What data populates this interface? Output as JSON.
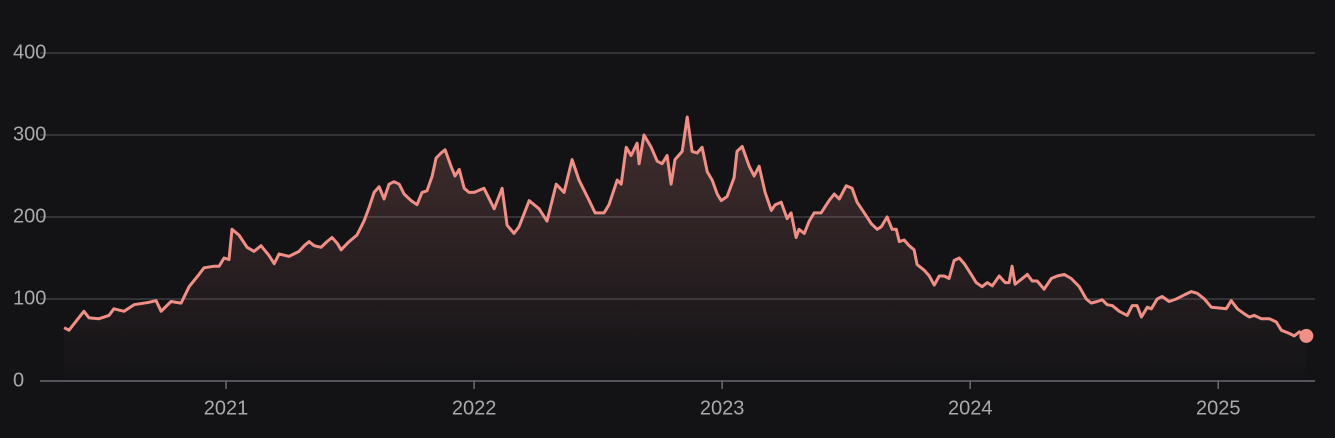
{
  "chart_data": {
    "type": "line",
    "color": "#ef8f86",
    "x": [
      2020.347,
      2020.367,
      2020.427,
      2020.448,
      2020.488,
      2020.528,
      2020.548,
      2020.589,
      2020.629,
      2020.69,
      2020.718,
      2020.738,
      2020.778,
      2020.819,
      2020.851,
      2020.891,
      2020.911,
      2020.952,
      2020.972,
      2020.992,
      2021.012,
      2021.024,
      2021.052,
      2021.085,
      2021.113,
      2021.141,
      2021.173,
      2021.194,
      2021.214,
      2021.254,
      2021.294,
      2021.315,
      2021.335,
      2021.355,
      2021.383,
      2021.407,
      2021.427,
      2021.448,
      2021.464,
      2021.496,
      2021.528,
      2021.556,
      2021.577,
      2021.597,
      2021.617,
      2021.637,
      2021.657,
      2021.677,
      2021.698,
      2021.718,
      2021.746,
      2021.77,
      2021.79,
      2021.81,
      2021.831,
      2021.847,
      2021.867,
      2021.883,
      2021.907,
      2021.923,
      2021.94,
      2021.96,
      2021.98,
      2022.0,
      2022.04,
      2022.081,
      2022.113,
      2022.133,
      2022.161,
      2022.181,
      2022.222,
      2022.262,
      2022.294,
      2022.331,
      2022.363,
      2022.395,
      2022.423,
      2022.464,
      2022.488,
      2022.524,
      2022.544,
      2022.577,
      2022.593,
      2022.613,
      2022.633,
      2022.657,
      2022.665,
      2022.685,
      2022.714,
      2022.738,
      2022.758,
      2022.778,
      2022.794,
      2022.81,
      2022.839,
      2022.859,
      2022.879,
      2022.899,
      2022.919,
      2022.94,
      2022.96,
      2022.98,
      2022.996,
      2023.02,
      2023.048,
      2023.06,
      2023.081,
      2023.109,
      2023.129,
      2023.149,
      2023.173,
      2023.198,
      2023.214,
      2023.238,
      2023.262,
      2023.278,
      2023.298,
      2023.31,
      2023.331,
      2023.351,
      2023.371,
      2023.399,
      2023.431,
      2023.452,
      2023.472,
      2023.5,
      2023.524,
      2023.544,
      2023.573,
      2023.601,
      2023.625,
      2023.641,
      2023.665,
      2023.685,
      2023.702,
      2023.714,
      2023.734,
      2023.754,
      2023.774,
      2023.786,
      2023.815,
      2023.835,
      2023.855,
      2023.875,
      2023.895,
      2023.915,
      2023.935,
      2023.956,
      2023.976,
      2024.004,
      2024.024,
      2024.048,
      2024.069,
      2024.089,
      2024.117,
      2024.141,
      2024.157,
      2024.169,
      2024.181,
      2024.206,
      2024.23,
      2024.25,
      2024.27,
      2024.298,
      2024.327,
      2024.351,
      2024.379,
      2024.407,
      2024.44,
      2024.468,
      2024.488,
      2024.512,
      2024.532,
      2024.552,
      2024.573,
      2024.601,
      2024.633,
      2024.653,
      2024.673,
      2024.69,
      2024.714,
      2024.73,
      2024.754,
      2024.774,
      2024.802,
      2024.831,
      2024.863,
      2024.891,
      2024.915,
      2024.944,
      2024.972,
      2025.004,
      2025.032,
      2025.052,
      2025.077,
      2025.105,
      2025.125,
      2025.145,
      2025.173,
      2025.206,
      2025.234,
      2025.254,
      2025.286,
      2025.306,
      2025.327,
      2025.355
    ],
    "values": [
      65,
      62,
      85,
      77,
      76,
      80,
      88,
      85,
      93,
      96,
      98,
      85,
      97,
      95,
      115,
      130,
      138,
      140,
      140,
      150,
      148,
      185,
      178,
      163,
      158,
      165,
      153,
      143,
      155,
      152,
      158,
      165,
      170,
      165,
      163,
      170,
      175,
      168,
      160,
      170,
      178,
      195,
      212,
      230,
      237,
      222,
      240,
      243,
      240,
      228,
      220,
      215,
      230,
      232,
      250,
      272,
      278,
      282,
      262,
      250,
      258,
      235,
      230,
      230,
      235,
      210,
      235,
      190,
      180,
      188,
      220,
      210,
      195,
      240,
      230,
      270,
      245,
      220,
      205,
      205,
      215,
      245,
      240,
      285,
      275,
      290,
      265,
      300,
      285,
      268,
      265,
      275,
      240,
      270,
      280,
      322,
      280,
      278,
      285,
      255,
      245,
      228,
      220,
      225,
      248,
      280,
      286,
      262,
      250,
      262,
      230,
      208,
      215,
      218,
      198,
      205,
      175,
      185,
      180,
      195,
      205,
      205,
      220,
      228,
      222,
      238,
      235,
      218,
      205,
      192,
      185,
      188,
      200,
      185,
      185,
      170,
      172,
      165,
      160,
      142,
      135,
      128,
      117,
      128,
      128,
      125,
      147,
      150,
      143,
      130,
      120,
      115,
      120,
      116,
      128,
      120,
      120,
      140,
      118,
      124,
      130,
      122,
      122,
      112,
      125,
      128,
      130,
      125,
      115,
      100,
      95,
      97,
      99,
      93,
      92,
      85,
      80,
      92,
      92,
      78,
      90,
      88,
      100,
      103,
      97,
      100,
      105,
      109,
      107,
      100,
      90,
      89,
      88,
      98,
      88,
      82,
      78,
      80,
      76,
      76,
      72,
      62,
      58,
      55,
      60,
      55
    ],
    "xlim": [
      2020.25,
      2025.39
    ],
    "xticks": [
      2021,
      2022,
      2023,
      2024,
      2025
    ],
    "ylim": [
      0,
      400
    ],
    "yticks": [
      0,
      100,
      200,
      300,
      400
    ],
    "grid": true
  }
}
